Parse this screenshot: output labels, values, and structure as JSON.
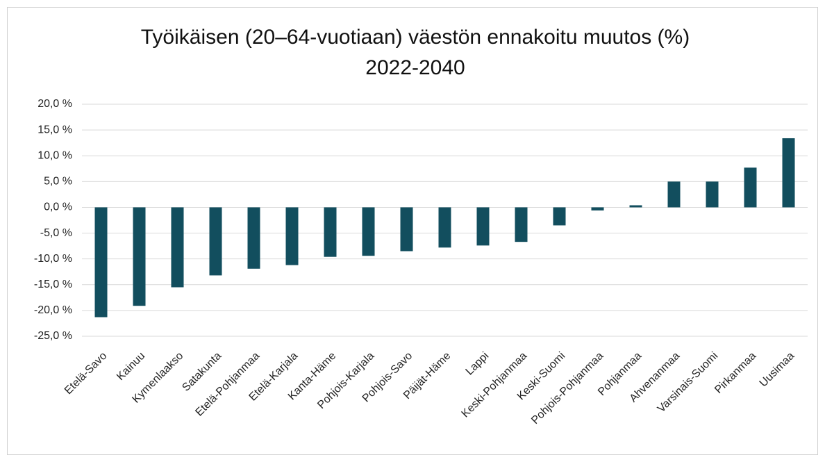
{
  "chart_data": {
    "type": "bar",
    "title": [
      "Työikäisen (20–64-vuotiaan) väestön ennakoitu muutos (%)",
      "2022-2040"
    ],
    "categories": [
      "Etelä-Savo",
      "Kainuu",
      "Kymenlaakso",
      "Satakunta",
      "Etelä-Pohjanmaa",
      "Etelä-Karjala",
      "Kanta-Häme",
      "Pohjois-Karjala",
      "Pohjois-Savo",
      "Päijät-Häme",
      "Lappi",
      "Keski-Pohjanmaa",
      "Keski-Suomi",
      "Pohjois-Pohjanmaa",
      "Pohjanmaa",
      "Ahvenanmaa",
      "Varsinais-Suomi",
      "Pirkanmaa",
      "Uusimaa"
    ],
    "values": [
      -21.3,
      -19.1,
      -15.5,
      -13.2,
      -11.9,
      -11.2,
      -9.6,
      -9.4,
      -8.5,
      -7.8,
      -7.4,
      -6.7,
      -3.5,
      -0.6,
      0.4,
      5.0,
      5.0,
      7.7,
      13.4
    ],
    "color": "#124e5e",
    "ylim": [
      -25,
      20
    ],
    "yticks": [
      {
        "value": -25,
        "label": "-25,0 %"
      },
      {
        "value": -20,
        "label": "-20,0 %"
      },
      {
        "value": -15,
        "label": "-15,0 %"
      },
      {
        "value": -10,
        "label": "-10,0 %"
      },
      {
        "value": -5,
        "label": "-5,0 %"
      },
      {
        "value": 0,
        "label": "0,0 %"
      },
      {
        "value": 5,
        "label": "5,0 %"
      },
      {
        "value": 10,
        "label": "10,0 %"
      },
      {
        "value": 15,
        "label": "15,0 %"
      },
      {
        "value": 20,
        "label": "20,0 %"
      }
    ],
    "grid": true
  }
}
